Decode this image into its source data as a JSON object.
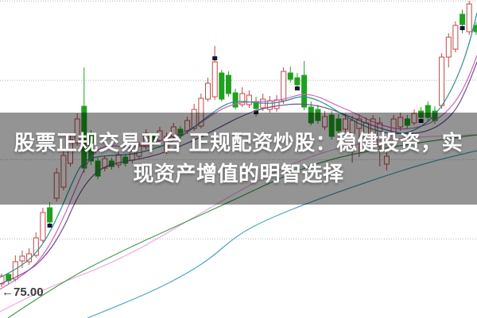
{
  "overlay": {
    "line1": "股票正规交易平台 正规配资炒股：稳健投资，实",
    "line2": "现资产增值的明智选择",
    "full_text": "股票正规交易平台 正规配资炒股：稳健投资，实现资产增值的明智选择",
    "text_color": "#ffffff",
    "background": "rgba(0,0,0,0.42)"
  },
  "chart_data": {
    "type": "candlestick",
    "legend_position": "none",
    "grid": "horizontal dotted",
    "y_axis": {
      "ylim": [
        74.01,
        86.04
      ],
      "gridline_values": [
        86.0,
        83.0,
        80.0,
        77.0
      ],
      "grid_color": "#b4b4b4"
    },
    "price_marker": {
      "arrow": "←",
      "label": "75.00",
      "value": 75.0,
      "color": "#3a3a3a"
    },
    "candle_colors": {
      "up": "#c54545",
      "down": "#1fa11f",
      "marker": "#15153a"
    },
    "candles": [
      [
        75.3,
        75.69,
        75.18,
        75.6
      ],
      [
        75.66,
        75.72,
        75.3,
        75.42
      ],
      [
        75.48,
        76.38,
        75.39,
        76.14
      ],
      [
        76.17,
        76.56,
        75.9,
        76.35
      ],
      [
        76.14,
        76.65,
        76.02,
        76.44
      ],
      [
        76.38,
        77.25,
        76.29,
        77.04
      ],
      [
        76.95,
        78.18,
        76.86,
        78.0
      ],
      [
        78.18,
        78.39,
        77.49,
        77.64,
        1
      ],
      [
        78.54,
        79.68,
        78.42,
        79.5
      ],
      [
        78.96,
        80.34,
        78.84,
        80.16
      ],
      [
        79.86,
        80.94,
        79.74,
        80.76
      ],
      [
        80.64,
        81.75,
        80.52,
        81.54
      ],
      [
        82.02,
        83.49,
        79.5,
        79.68
      ],
      [
        80.94,
        81.12,
        79.8,
        79.95
      ],
      [
        79.95,
        80.07,
        79.26,
        79.38
      ],
      [
        79.68,
        80.16,
        79.56,
        80.04
      ],
      [
        79.95,
        80.07,
        79.62,
        79.74
      ],
      [
        79.8,
        80.31,
        79.68,
        80.19
      ],
      [
        80.1,
        80.22,
        79.74,
        79.86
      ],
      [
        79.98,
        80.46,
        79.86,
        80.34
      ],
      [
        80.13,
        80.67,
        80.01,
        80.55
      ],
      [
        80.49,
        81.15,
        80.37,
        81.0
      ],
      [
        80.88,
        81.0,
        80.52,
        80.64
      ],
      [
        80.73,
        81.24,
        80.61,
        81.09
      ],
      [
        80.34,
        81.03,
        80.22,
        80.88
      ],
      [
        80.85,
        81.39,
        80.73,
        81.24
      ],
      [
        81.15,
        81.27,
        80.79,
        80.91
      ],
      [
        81.09,
        81.63,
        80.97,
        81.48
      ],
      [
        81.18,
        82.11,
        81.09,
        81.9
      ],
      [
        81.27,
        82.5,
        81.18,
        82.32
      ],
      [
        82.29,
        83.1,
        82.2,
        82.89
      ],
      [
        82.38,
        84.3,
        82.26,
        83.7,
        1
      ],
      [
        83.28,
        83.4,
        82.2,
        82.29
      ],
      [
        83.19,
        83.34,
        82.38,
        82.5
      ],
      [
        82.53,
        82.68,
        81.9,
        81.99
      ],
      [
        82.08,
        82.74,
        81.99,
        82.5
      ],
      [
        82.08,
        82.62,
        81.96,
        82.44
      ],
      [
        82.2,
        82.38,
        81.63,
        81.93,
        1
      ],
      [
        81.96,
        82.5,
        81.84,
        82.29
      ],
      [
        81.9,
        82.41,
        81.78,
        82.23
      ],
      [
        81.93,
        82.44,
        81.81,
        82.26
      ],
      [
        82.23,
        83.49,
        82.11,
        83.34
      ],
      [
        83.28,
        83.52,
        82.92,
        83.04
      ],
      [
        83.1,
        83.28,
        82.68,
        82.83,
        1
      ],
      [
        83.19,
        83.73,
        81.87,
        81.99
      ],
      [
        81.99,
        82.2,
        81.3,
        81.39
      ],
      [
        81.9,
        82.08,
        81.36,
        81.48
      ],
      [
        81.24,
        81.84,
        81.12,
        81.63
      ],
      [
        81.69,
        81.84,
        80.76,
        80.88
      ],
      [
        81.54,
        81.72,
        80.94,
        81.09
      ],
      [
        81.15,
        81.75,
        81.03,
        81.54
      ],
      [
        81.0,
        81.66,
        79.89,
        81.48
      ],
      [
        81.18,
        81.72,
        80.1,
        81.54
      ],
      [
        80.94,
        81.6,
        80.79,
        81.39
      ],
      [
        80.88,
        81.69,
        80.7,
        81.54
      ],
      [
        80.49,
        81.6,
        79.74,
        81.39
      ],
      [
        79.83,
        80.34,
        79.59,
        80.13
      ],
      [
        81.0,
        81.69,
        80.88,
        81.54
      ],
      [
        81.24,
        81.78,
        81.09,
        81.6
      ],
      [
        81.54,
        81.69,
        81.18,
        81.3
      ],
      [
        81.39,
        81.9,
        81.3,
        81.75
      ],
      [
        81.84,
        81.99,
        81.48,
        81.6,
        1
      ],
      [
        82.05,
        82.2,
        81.48,
        81.6
      ],
      [
        81.84,
        82.02,
        81.36,
        81.48
      ],
      [
        82.05,
        84.03,
        81.93,
        83.88
      ],
      [
        83.88,
        84.78,
        83.49,
        84.63
      ],
      [
        84.18,
        85.23,
        84.06,
        85.08
      ],
      [
        85.5,
        85.68,
        84.78,
        85.11,
        1
      ],
      [
        84.84,
        86.01,
        84.72,
        85.89
      ],
      [
        85.08,
        85.2,
        84.72,
        84.84
      ]
    ],
    "ma_lines": [
      {
        "name": "ma-pink",
        "color": "#f0aae2",
        "points": [
          [
            0,
            74.25
          ],
          [
            55,
            75.1
          ],
          [
            100,
            75.6
          ],
          [
            140,
            76.1
          ],
          [
            180,
            76.7
          ],
          [
            220,
            77.4
          ],
          [
            260,
            78.1
          ],
          [
            300,
            78.8
          ],
          [
            340,
            79.45
          ],
          [
            380,
            80.0
          ],
          [
            420,
            80.4
          ],
          [
            460,
            80.65
          ],
          [
            500,
            80.8
          ],
          [
            540,
            80.88
          ],
          [
            580,
            80.92
          ],
          [
            600,
            80.94
          ]
        ]
      },
      {
        "name": "ma-green",
        "color": "#3f9d4f",
        "points": [
          [
            10,
            74.01
          ],
          [
            80,
            75.42
          ],
          [
            150,
            76.5
          ],
          [
            220,
            77.46
          ],
          [
            290,
            78.42
          ],
          [
            360,
            79.41
          ],
          [
            410,
            79.98
          ],
          [
            470,
            80.37
          ],
          [
            540,
            80.7
          ],
          [
            600,
            80.94
          ]
        ]
      },
      {
        "name": "ma-cyan",
        "color": "#4aa6c0",
        "points": [
          [
            110,
            74.01
          ],
          [
            165,
            74.67
          ],
          [
            215,
            75.36
          ],
          [
            260,
            76.14
          ],
          [
            300,
            77.19
          ],
          [
            340,
            77.79
          ],
          [
            390,
            78.39
          ],
          [
            440,
            78.93
          ],
          [
            490,
            79.44
          ],
          [
            545,
            79.95
          ],
          [
            600,
            80.34
          ]
        ]
      },
      {
        "name": "ma-magenta",
        "color": "#cf63c4",
        "points": [
          [
            0,
            75.1
          ],
          [
            35,
            75.7
          ],
          [
            60,
            76.6
          ],
          [
            80,
            77.8
          ],
          [
            95,
            78.9
          ],
          [
            108,
            79.8
          ],
          [
            122,
            80.4
          ],
          [
            140,
            80.55
          ],
          [
            160,
            80.45
          ],
          [
            180,
            80.5
          ],
          [
            200,
            80.7
          ],
          [
            220,
            80.9
          ],
          [
            240,
            81.15
          ],
          [
            260,
            81.55
          ],
          [
            280,
            81.95
          ],
          [
            300,
            82.15
          ],
          [
            320,
            82.2
          ],
          [
            340,
            82.2
          ],
          [
            360,
            82.3
          ],
          [
            380,
            82.5
          ],
          [
            400,
            82.4
          ],
          [
            420,
            82.1
          ],
          [
            440,
            81.85
          ],
          [
            460,
            81.55
          ],
          [
            480,
            81.3
          ],
          [
            500,
            81.15
          ],
          [
            520,
            81.18
          ],
          [
            540,
            81.35
          ],
          [
            558,
            81.7
          ],
          [
            572,
            82.15
          ],
          [
            584,
            82.75
          ],
          [
            594,
            83.45
          ],
          [
            600,
            83.95
          ]
        ]
      },
      {
        "name": "ma-purple",
        "color": "#6f4b93",
        "points": [
          [
            0,
            75.3
          ],
          [
            35,
            75.72
          ],
          [
            60,
            76.44
          ],
          [
            80,
            77.4
          ],
          [
            95,
            78.45
          ],
          [
            110,
            79.2
          ],
          [
            128,
            79.7
          ],
          [
            150,
            79.9
          ],
          [
            175,
            80.02
          ],
          [
            200,
            80.2
          ],
          [
            225,
            80.48
          ],
          [
            250,
            80.82
          ],
          [
            275,
            81.2
          ],
          [
            300,
            81.6
          ],
          [
            325,
            81.9
          ],
          [
            350,
            82.05
          ],
          [
            375,
            82.12
          ],
          [
            400,
            82.05
          ],
          [
            425,
            81.82
          ],
          [
            450,
            81.5
          ],
          [
            475,
            81.22
          ],
          [
            500,
            81.0
          ],
          [
            522,
            80.98
          ],
          [
            542,
            81.12
          ],
          [
            560,
            81.45
          ],
          [
            575,
            81.95
          ],
          [
            587,
            82.7
          ],
          [
            595,
            83.3
          ],
          [
            600,
            83.7
          ]
        ]
      },
      {
        "name": "ma-teal",
        "color": "#2f8f8f",
        "points": [
          [
            0,
            75.54
          ],
          [
            30,
            75.99
          ],
          [
            55,
            76.8
          ],
          [
            75,
            78.0
          ],
          [
            90,
            79.08
          ],
          [
            103,
            79.89
          ],
          [
            118,
            80.1
          ],
          [
            140,
            80.16
          ],
          [
            165,
            80.19
          ],
          [
            190,
            80.37
          ],
          [
            215,
            80.64
          ],
          [
            240,
            81.12
          ],
          [
            262,
            81.66
          ],
          [
            285,
            82.14
          ],
          [
            305,
            82.23
          ],
          [
            330,
            82.11
          ],
          [
            355,
            82.17
          ],
          [
            380,
            82.44
          ],
          [
            405,
            82.2
          ],
          [
            430,
            81.72
          ],
          [
            455,
            81.3
          ],
          [
            480,
            81.03
          ],
          [
            505,
            80.96
          ],
          [
            525,
            81.15
          ],
          [
            545,
            81.6
          ],
          [
            562,
            82.3
          ],
          [
            578,
            83.3
          ],
          [
            590,
            84.35
          ],
          [
            600,
            85.55
          ]
        ]
      }
    ]
  }
}
